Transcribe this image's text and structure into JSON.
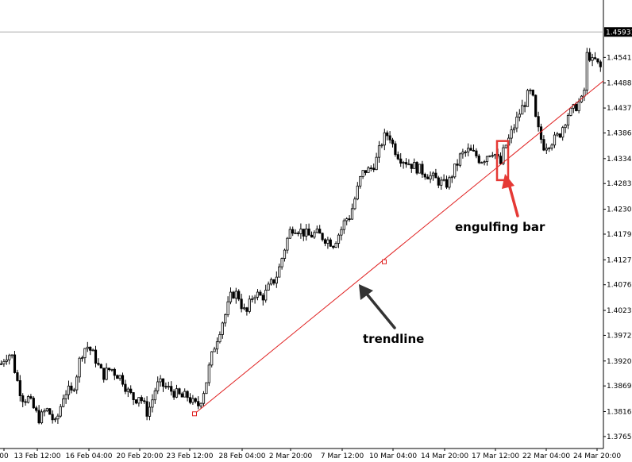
{
  "colors": {
    "background": "#ffffff",
    "candles": "#000000",
    "trendline": "#e02020",
    "arrow_red": "#e53935",
    "arrow_dark": "#333333",
    "price_label_bg": "#000000",
    "price_label_text": "#ffffff"
  },
  "chart_data": {
    "type": "candlestick",
    "instrument_note": "",
    "ylim": [
      1.3741,
      1.4626
    ],
    "current_price": "1.45931",
    "y_ticks": [
      "1.45410",
      "1.44888",
      "1.44375",
      "1.43865",
      "1.43340",
      "1.42830",
      "1.42305",
      "1.41795",
      "1.41270",
      "1.40760",
      "1.40235",
      "1.39725",
      "1.39200",
      "1.38690",
      "1.38165",
      "1.37655"
    ],
    "x_ticks": [
      "00",
      "13 Feb 12:00",
      "16 Feb 04:00",
      "20 Feb 20:00",
      "23 Feb 12:00",
      "28 Feb 04:00",
      "2 Mar 20:00",
      "7 Mar 12:00",
      "10 Mar 04:00",
      "14 Mar 20:00",
      "17 Mar 12:00",
      "22 Mar 04:00",
      "24 Mar 20:00"
    ],
    "close_path": [
      [
        0,
        1.391
      ],
      [
        5,
        1.3925
      ],
      [
        10,
        1.3935
      ],
      [
        15,
        1.393
      ],
      [
        20,
        1.389
      ],
      [
        25,
        1.386
      ],
      [
        30,
        1.384
      ],
      [
        35,
        1.3845
      ],
      [
        40,
        1.383
      ],
      [
        45,
        1.3815
      ],
      [
        50,
        1.38
      ],
      [
        55,
        1.3815
      ],
      [
        60,
        1.382
      ],
      [
        65,
        1.3805
      ],
      [
        70,
        1.379
      ],
      [
        75,
        1.382
      ],
      [
        80,
        1.385
      ],
      [
        85,
        1.386
      ],
      [
        90,
        1.3855
      ],
      [
        95,
        1.388
      ],
      [
        100,
        1.392
      ],
      [
        105,
        1.3945
      ],
      [
        110,
        1.395
      ],
      [
        115,
        1.394
      ],
      [
        120,
        1.3925
      ],
      [
        125,
        1.3905
      ],
      [
        130,
        1.389
      ],
      [
        135,
        1.39
      ],
      [
        140,
        1.3905
      ],
      [
        145,
        1.3895
      ],
      [
        150,
        1.389
      ],
      [
        155,
        1.388
      ],
      [
        160,
        1.386
      ],
      [
        165,
        1.385
      ],
      [
        170,
        1.384
      ],
      [
        175,
        1.385
      ],
      [
        180,
        1.3835
      ],
      [
        185,
        1.3815
      ],
      [
        190,
        1.383
      ],
      [
        195,
        1.386
      ],
      [
        200,
        1.3875
      ],
      [
        205,
        1.387
      ],
      [
        210,
        1.3865
      ],
      [
        215,
        1.386
      ],
      [
        220,
        1.3855
      ],
      [
        225,
        1.385
      ],
      [
        230,
        1.3845
      ],
      [
        235,
        1.385
      ],
      [
        240,
        1.384
      ],
      [
        245,
        1.383
      ],
      [
        250,
        1.383
      ],
      [
        255,
        1.385
      ],
      [
        260,
        1.388
      ],
      [
        265,
        1.392
      ],
      [
        270,
        1.395
      ],
      [
        275,
        1.3975
      ],
      [
        280,
        1.4
      ],
      [
        285,
        1.402
      ],
      [
        290,
        1.405
      ],
      [
        295,
        1.406
      ],
      [
        300,
        1.4055
      ],
      [
        305,
        1.403
      ],
      [
        310,
        1.4015
      ],
      [
        315,
        1.404
      ],
      [
        320,
        1.406
      ],
      [
        325,
        1.4055
      ],
      [
        330,
        1.405
      ],
      [
        335,
        1.406
      ],
      [
        340,
        1.4075
      ],
      [
        345,
        1.4085
      ],
      [
        350,
        1.41
      ],
      [
        355,
        1.413
      ],
      [
        360,
        1.416
      ],
      [
        365,
        1.4185
      ],
      [
        370,
        1.4195
      ],
      [
        375,
        1.419
      ],
      [
        380,
        1.4185
      ],
      [
        385,
        1.418
      ],
      [
        390,
        1.4175
      ],
      [
        395,
        1.418
      ],
      [
        400,
        1.418
      ],
      [
        405,
        1.4175
      ],
      [
        410,
        1.417
      ],
      [
        415,
        1.4165
      ],
      [
        420,
        1.416
      ],
      [
        425,
        1.4175
      ],
      [
        430,
        1.419
      ],
      [
        435,
        1.421
      ],
      [
        440,
        1.4215
      ],
      [
        445,
        1.424
      ],
      [
        450,
        1.427
      ],
      [
        455,
        1.43
      ],
      [
        460,
        1.431
      ],
      [
        465,
        1.431
      ],
      [
        470,
        1.432
      ],
      [
        475,
        1.4335
      ],
      [
        480,
        1.4365
      ],
      [
        485,
        1.438
      ],
      [
        490,
        1.4385
      ],
      [
        495,
        1.436
      ],
      [
        500,
        1.4345
      ],
      [
        505,
        1.4335
      ],
      [
        510,
        1.433
      ],
      [
        515,
        1.4325
      ],
      [
        520,
        1.432
      ],
      [
        525,
        1.4315
      ],
      [
        530,
        1.431
      ],
      [
        535,
        1.4305
      ],
      [
        540,
        1.43
      ],
      [
        545,
        1.4295
      ],
      [
        550,
        1.429
      ],
      [
        555,
        1.4285
      ],
      [
        560,
        1.428
      ],
      [
        565,
        1.4285
      ],
      [
        570,
        1.4305
      ],
      [
        575,
        1.432
      ],
      [
        580,
        1.434
      ],
      [
        585,
        1.4345
      ],
      [
        590,
        1.435
      ],
      [
        595,
        1.4345
      ],
      [
        600,
        1.434
      ],
      [
        605,
        1.433
      ],
      [
        610,
        1.4335
      ],
      [
        615,
        1.4345
      ],
      [
        620,
        1.435
      ],
      [
        625,
        1.434
      ],
      [
        630,
        1.432
      ],
      [
        635,
        1.4355
      ],
      [
        640,
        1.437
      ],
      [
        645,
        1.439
      ],
      [
        650,
        1.441
      ],
      [
        655,
        1.443
      ],
      [
        660,
        1.4445
      ],
      [
        665,
        1.4465
      ],
      [
        670,
        1.447
      ],
      [
        675,
        1.441
      ],
      [
        680,
        1.438
      ],
      [
        685,
        1.436
      ],
      [
        690,
        1.4365
      ],
      [
        695,
        1.437
      ],
      [
        700,
        1.4375
      ],
      [
        705,
        1.4385
      ],
      [
        710,
        1.4405
      ],
      [
        715,
        1.4425
      ],
      [
        720,
        1.443
      ],
      [
        725,
        1.444
      ],
      [
        730,
        1.445
      ],
      [
        735,
        1.4455
      ],
      [
        740,
        1.456
      ],
      [
        745,
        1.453
      ],
      [
        750,
        1.4535
      ],
      [
        755,
        1.452
      ]
    ],
    "trendline": {
      "from": [
        245,
        1.3812
      ],
      "to": [
        760,
        1.4493
      ],
      "anchor": [
        484,
        1.4123
      ]
    },
    "engulfing_box": {
      "x0": 626,
      "x1": 640,
      "y_low": 1.429,
      "y_high": 1.437
    },
    "annotations": {
      "engulfing": "engulfing bar",
      "trendline": "trendline"
    }
  }
}
